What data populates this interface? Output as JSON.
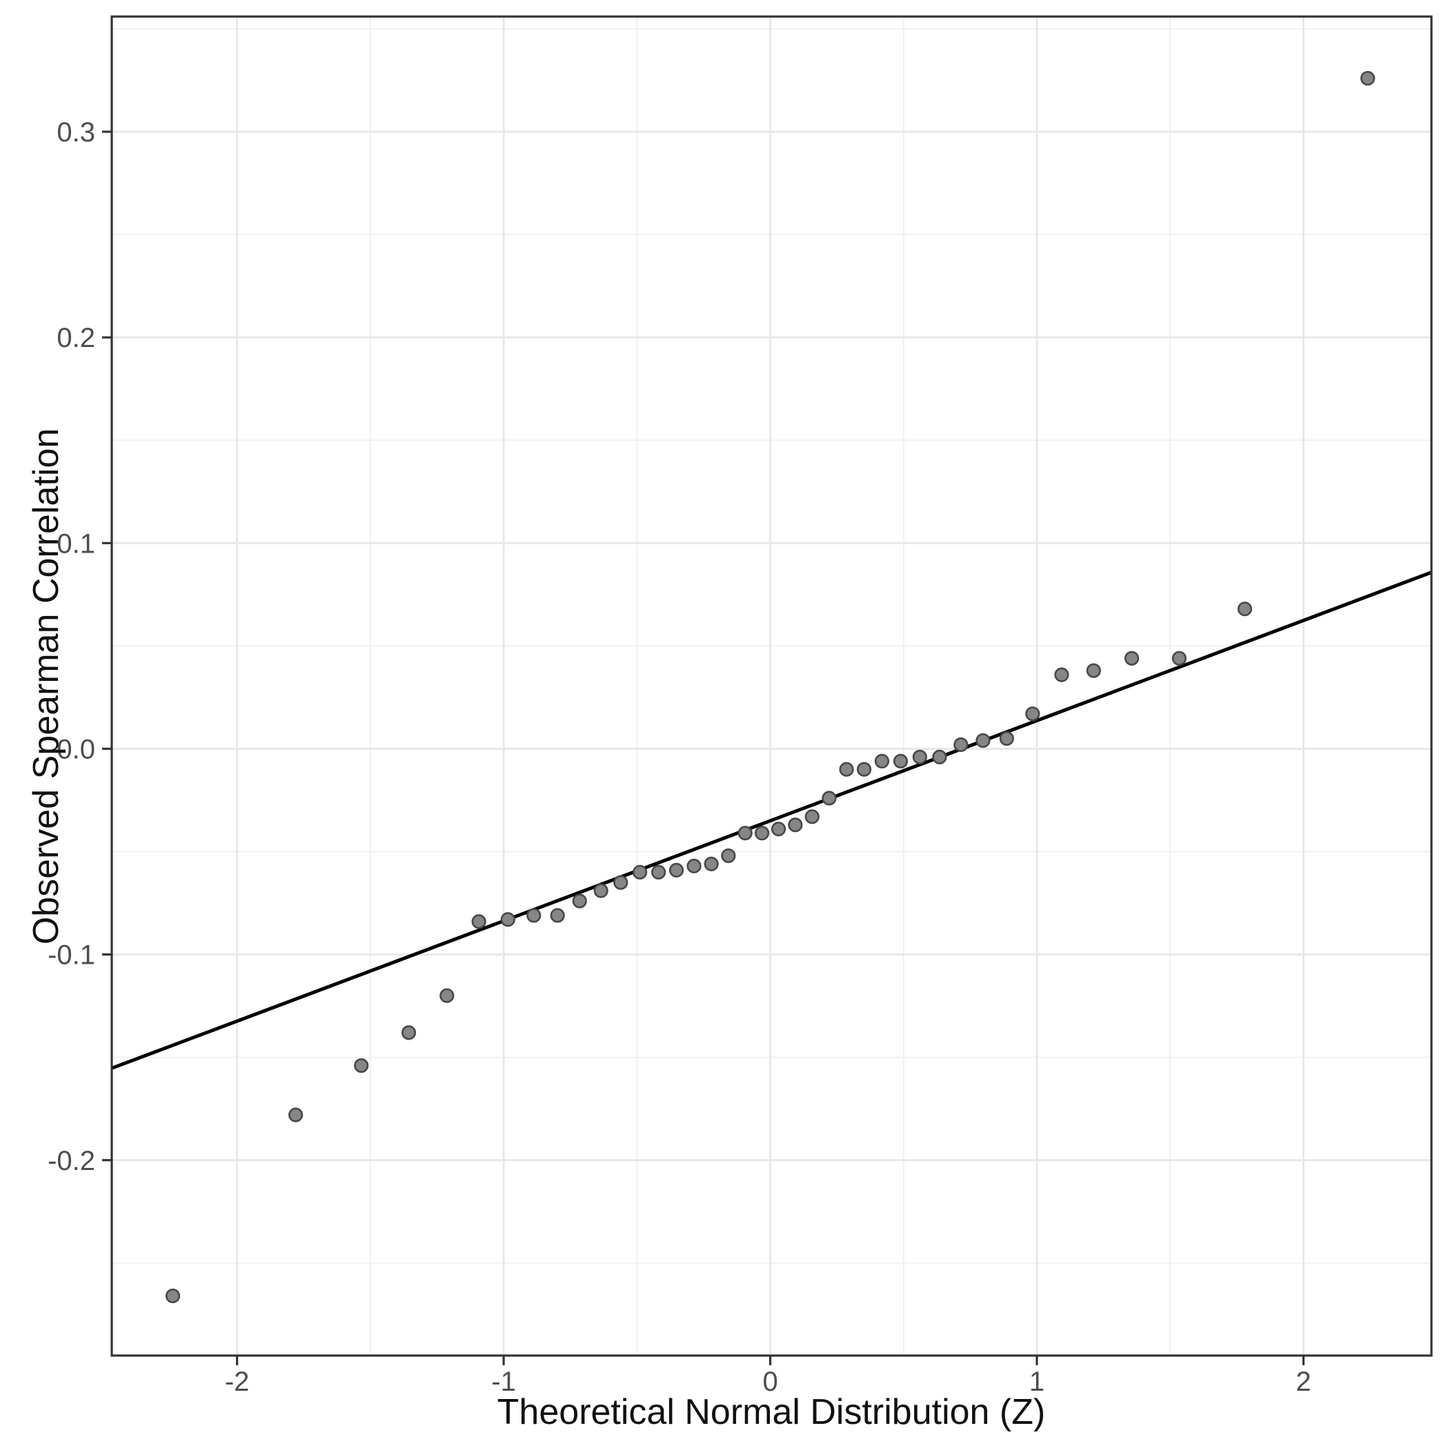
{
  "chart_data": {
    "type": "scatter",
    "title": "",
    "xlabel": "Theoretical Normal Distribution (Z)",
    "ylabel": "Observed Spearman Correlation",
    "xlim": [
      -2.47,
      2.48
    ],
    "ylim": [
      -0.295,
      0.356
    ],
    "grid": true,
    "legend": "none",
    "x_major_ticks": [
      -2,
      -1,
      0,
      1,
      2
    ],
    "x_tick_labels": [
      "-2",
      "-1",
      "0",
      "1",
      "2"
    ],
    "x_minor_ticks": [
      -1.5,
      -0.5,
      0.5,
      1.5
    ],
    "y_major_ticks": [
      0.3,
      0.2,
      0.1,
      0.0,
      -0.1,
      -0.2
    ],
    "y_tick_labels": [
      "0.3",
      "0.2",
      "0.1",
      "0.0",
      "-0.1",
      "-0.2"
    ],
    "y_minor_ticks": [
      0.35,
      0.25,
      0.15,
      0.05,
      -0.05,
      -0.15,
      -0.25
    ],
    "points": [
      [
        -2.241,
        -0.266
      ],
      [
        -1.78,
        -0.178
      ],
      [
        -1.534,
        -0.154
      ],
      [
        -1.356,
        -0.138
      ],
      [
        -1.213,
        -0.12
      ],
      [
        -1.093,
        -0.084
      ],
      [
        -0.984,
        -0.083
      ],
      [
        -0.887,
        -0.081
      ],
      [
        -0.798,
        -0.081
      ],
      [
        -0.715,
        -0.074
      ],
      [
        -0.635,
        -0.069
      ],
      [
        -0.561,
        -0.065
      ],
      [
        -0.489,
        -0.06
      ],
      [
        -0.419,
        -0.06
      ],
      [
        -0.352,
        -0.059
      ],
      [
        -0.286,
        -0.057
      ],
      [
        -0.221,
        -0.056
      ],
      [
        -0.157,
        -0.052
      ],
      [
        -0.094,
        -0.041
      ],
      [
        -0.031,
        -0.041
      ],
      [
        0.031,
        -0.039
      ],
      [
        0.094,
        -0.037
      ],
      [
        0.157,
        -0.033
      ],
      [
        0.221,
        -0.024
      ],
      [
        0.286,
        -0.01
      ],
      [
        0.352,
        -0.01
      ],
      [
        0.419,
        -0.006
      ],
      [
        0.489,
        -0.006
      ],
      [
        0.561,
        -0.004
      ],
      [
        0.635,
        -0.004
      ],
      [
        0.715,
        0.002
      ],
      [
        0.798,
        0.004
      ],
      [
        0.887,
        0.005
      ],
      [
        0.984,
        0.017
      ],
      [
        1.093,
        0.036
      ],
      [
        1.213,
        0.038
      ],
      [
        1.356,
        0.044
      ],
      [
        1.534,
        0.044
      ],
      [
        1.78,
        0.068
      ],
      [
        2.241,
        0.326
      ]
    ],
    "reference_line": {
      "slope": 0.0487,
      "intercept": -0.035
    },
    "colors": {
      "background": "#ffffff",
      "panel_background": "#ffffff",
      "panel_border": "#333333",
      "grid_major": "#e8e8e8",
      "grid_minor": "#f2f2f2",
      "tick_mark": "#333333",
      "tick_label": "#4d4d4d",
      "axis_title": "#111111",
      "point_fill": "#868686",
      "point_stroke": "#474747",
      "line": "#000000"
    },
    "point_radius": 9.3,
    "point_stroke_width": 2.6,
    "line_width": 5
  }
}
